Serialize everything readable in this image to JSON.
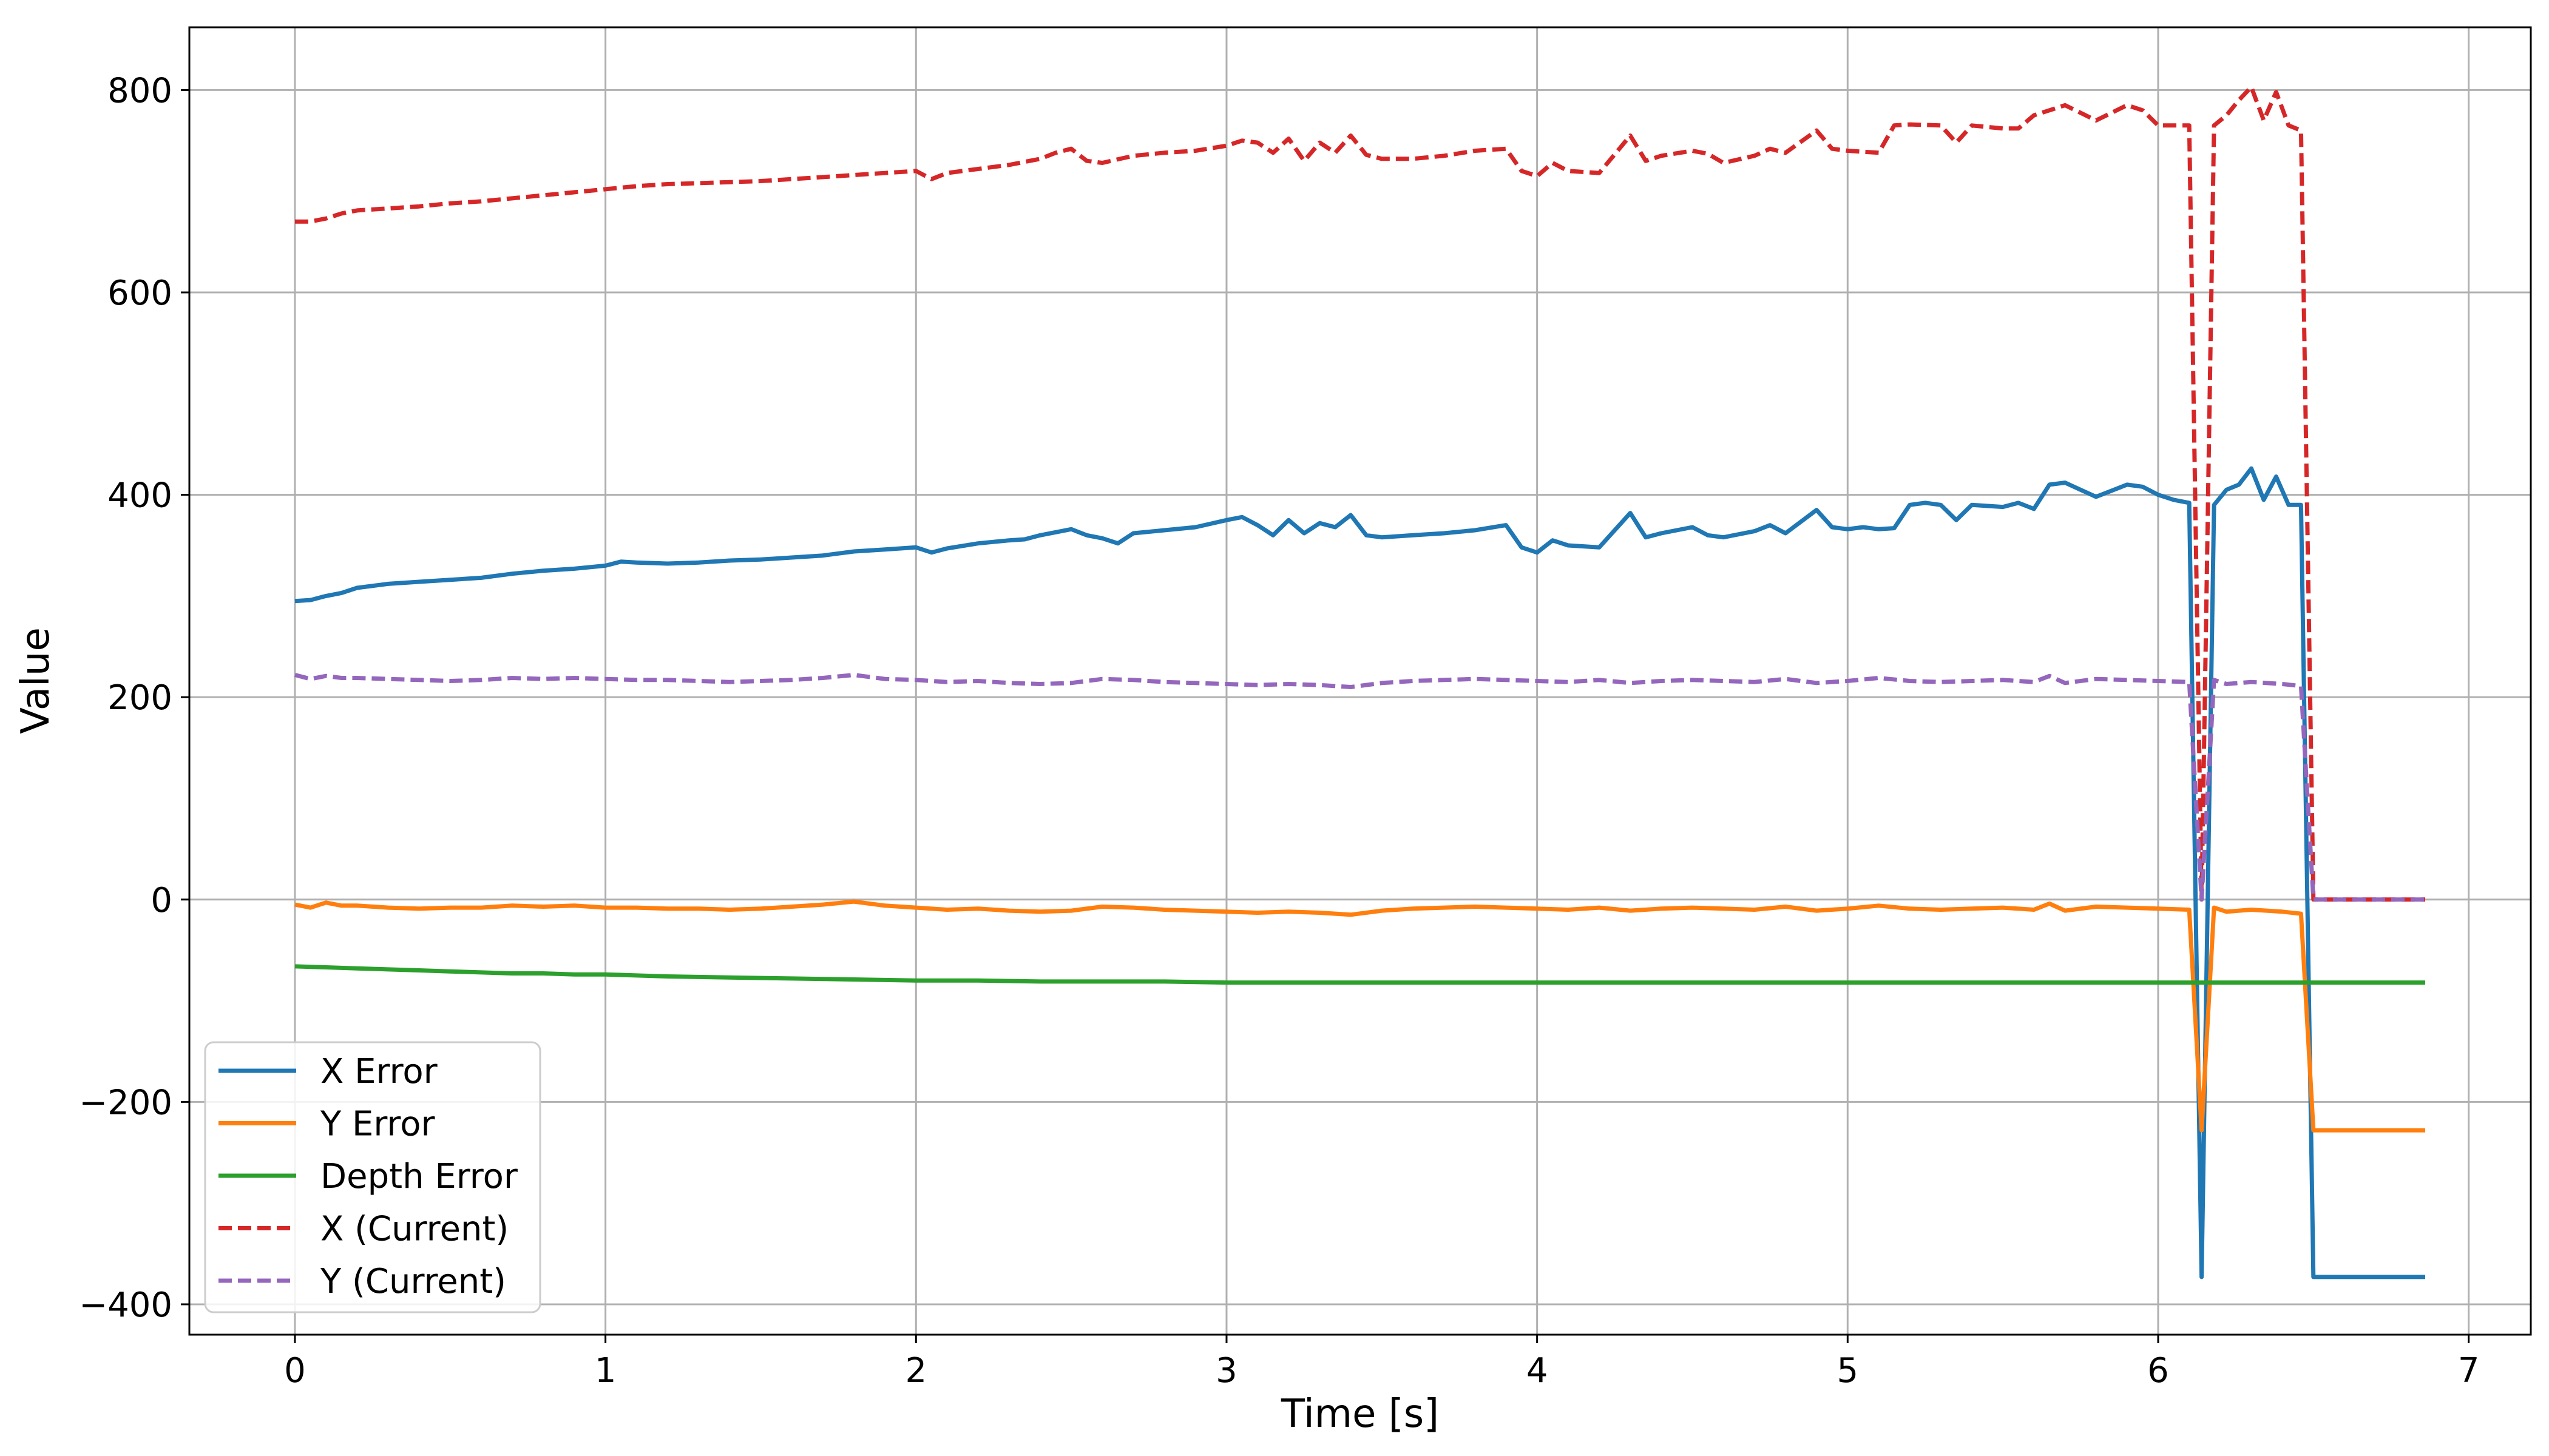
{
  "chart_data": {
    "type": "line",
    "title": "",
    "xlabel": "Time [s]",
    "ylabel": "Value",
    "xlim": [
      -0.34,
      7.2
    ],
    "ylim": [
      -430,
      862
    ],
    "xticks": [
      0,
      1,
      2,
      3,
      4,
      5,
      6,
      7
    ],
    "yticks": [
      -400,
      -200,
      0,
      200,
      400,
      600,
      800
    ],
    "xtick_labels": [
      "0",
      "1",
      "2",
      "3",
      "4",
      "5",
      "6",
      "7"
    ],
    "ytick_labels": [
      "−400",
      "−200",
      "0",
      "200",
      "400",
      "600",
      "800"
    ],
    "grid": true,
    "legend_position": "lower-left",
    "series": [
      {
        "name": "X Error",
        "color": "#1f77b4",
        "dash": "solid",
        "x": [
          0,
          0.05,
          0.1,
          0.15,
          0.2,
          0.3,
          0.4,
          0.5,
          0.6,
          0.7,
          0.8,
          0.9,
          1.0,
          1.05,
          1.1,
          1.2,
          1.3,
          1.4,
          1.5,
          1.6,
          1.7,
          1.75,
          1.8,
          1.9,
          2.0,
          2.05,
          2.1,
          2.2,
          2.3,
          2.35,
          2.4,
          2.45,
          2.5,
          2.55,
          2.6,
          2.65,
          2.7,
          2.8,
          2.9,
          3.0,
          3.05,
          3.1,
          3.15,
          3.2,
          3.25,
          3.3,
          3.35,
          3.4,
          3.45,
          3.5,
          3.6,
          3.7,
          3.8,
          3.9,
          3.95,
          4.0,
          4.05,
          4.1,
          4.2,
          4.3,
          4.35,
          4.4,
          4.5,
          4.55,
          4.6,
          4.7,
          4.75,
          4.8,
          4.9,
          4.95,
          5.0,
          5.05,
          5.1,
          5.15,
          5.2,
          5.25,
          5.3,
          5.35,
          5.4,
          5.5,
          5.55,
          5.6,
          5.65,
          5.7,
          5.75,
          5.8,
          5.9,
          5.95,
          6.0,
          6.05,
          6.1,
          6.14,
          6.18,
          6.22,
          6.26,
          6.3,
          6.34,
          6.38,
          6.42,
          6.46,
          6.5,
          6.6,
          6.7,
          6.86
        ],
        "values": [
          295,
          296,
          300,
          303,
          308,
          312,
          314,
          316,
          318,
          322,
          325,
          327,
          330,
          334,
          333,
          332,
          333,
          335,
          336,
          338,
          340,
          342,
          344,
          346,
          348,
          343,
          347,
          352,
          355,
          356,
          360,
          363,
          366,
          360,
          357,
          352,
          362,
          365,
          368,
          375,
          378,
          370,
          360,
          375,
          362,
          372,
          368,
          380,
          360,
          358,
          360,
          362,
          365,
          370,
          348,
          343,
          355,
          350,
          348,
          382,
          358,
          362,
          368,
          360,
          358,
          364,
          370,
          362,
          385,
          368,
          366,
          368,
          366,
          367,
          390,
          392,
          390,
          375,
          390,
          388,
          392,
          386,
          410,
          412,
          405,
          398,
          410,
          408,
          400,
          395,
          392,
          -373,
          390,
          405,
          410,
          426,
          395,
          418,
          390,
          390,
          -373,
          -373,
          -373,
          -373
        ]
      },
      {
        "name": "Y Error",
        "color": "#ff7f0e",
        "dash": "solid",
        "x": [
          0,
          0.05,
          0.1,
          0.15,
          0.2,
          0.3,
          0.4,
          0.5,
          0.6,
          0.7,
          0.8,
          0.9,
          1.0,
          1.1,
          1.2,
          1.3,
          1.4,
          1.5,
          1.6,
          1.7,
          1.8,
          1.9,
          2.0,
          2.1,
          2.2,
          2.3,
          2.4,
          2.5,
          2.6,
          2.7,
          2.8,
          2.9,
          3.0,
          3.1,
          3.2,
          3.3,
          3.4,
          3.5,
          3.6,
          3.7,
          3.8,
          3.9,
          4.0,
          4.1,
          4.2,
          4.3,
          4.4,
          4.5,
          4.6,
          4.7,
          4.8,
          4.9,
          5.0,
          5.1,
          5.2,
          5.3,
          5.4,
          5.5,
          5.6,
          5.65,
          5.7,
          5.8,
          5.9,
          6.0,
          6.1,
          6.14,
          6.18,
          6.22,
          6.3,
          6.4,
          6.46,
          6.5,
          6.6,
          6.7,
          6.86
        ],
        "values": [
          -5,
          -8,
          -3,
          -6,
          -6,
          -8,
          -9,
          -8,
          -8,
          -6,
          -7,
          -6,
          -8,
          -8,
          -9,
          -9,
          -10,
          -9,
          -7,
          -5,
          -2,
          -6,
          -8,
          -10,
          -9,
          -11,
          -12,
          -11,
          -7,
          -8,
          -10,
          -11,
          -12,
          -13,
          -12,
          -13,
          -15,
          -11,
          -9,
          -8,
          -7,
          -8,
          -9,
          -10,
          -8,
          -11,
          -9,
          -8,
          -9,
          -10,
          -7,
          -11,
          -9,
          -6,
          -9,
          -10,
          -9,
          -8,
          -10,
          -4,
          -11,
          -7,
          -8,
          -9,
          -10,
          -228,
          -8,
          -12,
          -10,
          -12,
          -14,
          -228,
          -228,
          -228,
          -228
        ]
      },
      {
        "name": "Depth Error",
        "color": "#2ca02c",
        "dash": "solid",
        "x": [
          0,
          0.1,
          0.2,
          0.3,
          0.4,
          0.5,
          0.6,
          0.7,
          0.8,
          0.9,
          1.0,
          1.1,
          1.2,
          1.4,
          1.6,
          1.8,
          2.0,
          2.2,
          2.4,
          2.6,
          2.8,
          3.0,
          3.2,
          3.4,
          4.0,
          5.0,
          6.0,
          6.86
        ],
        "values": [
          -66,
          -67,
          -68,
          -69,
          -70,
          -71,
          -72,
          -73,
          -73,
          -74,
          -74,
          -75,
          -76,
          -77,
          -78,
          -79,
          -80,
          -80,
          -81,
          -81,
          -81,
          -82,
          -82,
          -82,
          -82,
          -82,
          -82,
          -82
        ]
      },
      {
        "name": "X (Current)",
        "color": "#d62728",
        "dash": "dashed",
        "x": [
          0,
          0.05,
          0.1,
          0.15,
          0.2,
          0.3,
          0.4,
          0.5,
          0.6,
          0.7,
          0.8,
          0.9,
          1.0,
          1.1,
          1.2,
          1.3,
          1.4,
          1.5,
          1.6,
          1.7,
          1.8,
          1.9,
          2.0,
          2.05,
          2.1,
          2.2,
          2.3,
          2.35,
          2.4,
          2.45,
          2.5,
          2.55,
          2.6,
          2.7,
          2.8,
          2.9,
          3.0,
          3.05,
          3.1,
          3.15,
          3.2,
          3.25,
          3.3,
          3.35,
          3.4,
          3.45,
          3.5,
          3.6,
          3.7,
          3.8,
          3.9,
          3.95,
          4.0,
          4.05,
          4.1,
          4.2,
          4.3,
          4.35,
          4.4,
          4.5,
          4.55,
          4.6,
          4.7,
          4.75,
          4.8,
          4.9,
          4.95,
          5.0,
          5.1,
          5.15,
          5.2,
          5.3,
          5.35,
          5.4,
          5.5,
          5.55,
          5.6,
          5.65,
          5.7,
          5.8,
          5.9,
          5.95,
          6.0,
          6.05,
          6.1,
          6.14,
          6.18,
          6.22,
          6.26,
          6.3,
          6.34,
          6.38,
          6.42,
          6.46,
          6.5,
          6.6,
          6.7,
          6.86
        ],
        "values": [
          670,
          670,
          673,
          678,
          681,
          683,
          685,
          688,
          690,
          693,
          696,
          699,
          702,
          705,
          707,
          708,
          709,
          710,
          712,
          714,
          716,
          718,
          720,
          712,
          718,
          722,
          726,
          729,
          732,
          738,
          742,
          730,
          728,
          735,
          738,
          740,
          745,
          750,
          748,
          738,
          752,
          730,
          748,
          738,
          755,
          736,
          732,
          732,
          735,
          740,
          742,
          720,
          715,
          728,
          720,
          718,
          755,
          730,
          735,
          740,
          737,
          728,
          735,
          742,
          738,
          760,
          742,
          740,
          738,
          765,
          766,
          765,
          748,
          765,
          762,
          762,
          775,
          780,
          785,
          770,
          785,
          780,
          765,
          765,
          765,
          0,
          765,
          775,
          790,
          803,
          770,
          798,
          765,
          760,
          0,
          0,
          0,
          0
        ]
      },
      {
        "name": "Y (Current)",
        "color": "#9467bd",
        "dash": "dashed",
        "x": [
          0,
          0.05,
          0.1,
          0.15,
          0.2,
          0.3,
          0.4,
          0.5,
          0.6,
          0.7,
          0.8,
          0.9,
          1.0,
          1.1,
          1.2,
          1.3,
          1.4,
          1.5,
          1.6,
          1.7,
          1.8,
          1.9,
          2.0,
          2.1,
          2.2,
          2.3,
          2.4,
          2.5,
          2.6,
          2.7,
          2.8,
          2.9,
          3.0,
          3.1,
          3.2,
          3.3,
          3.4,
          3.5,
          3.6,
          3.7,
          3.8,
          3.9,
          4.0,
          4.1,
          4.2,
          4.3,
          4.4,
          4.5,
          4.6,
          4.7,
          4.8,
          4.9,
          5.0,
          5.1,
          5.2,
          5.3,
          5.4,
          5.5,
          5.6,
          5.65,
          5.7,
          5.8,
          5.9,
          6.0,
          6.1,
          6.14,
          6.18,
          6.22,
          6.3,
          6.4,
          6.46,
          6.5,
          6.6,
          6.7,
          6.86
        ],
        "values": [
          222,
          218,
          221,
          219,
          219,
          218,
          217,
          216,
          217,
          219,
          218,
          219,
          218,
          217,
          217,
          216,
          215,
          216,
          217,
          219,
          222,
          218,
          217,
          215,
          216,
          214,
          213,
          214,
          218,
          217,
          215,
          214,
          213,
          212,
          213,
          212,
          210,
          214,
          216,
          217,
          218,
          217,
          216,
          215,
          217,
          214,
          216,
          217,
          216,
          215,
          218,
          214,
          216,
          219,
          216,
          215,
          216,
          217,
          215,
          221,
          214,
          218,
          217,
          216,
          215,
          0,
          217,
          213,
          215,
          213,
          211,
          0,
          0,
          0,
          0
        ]
      }
    ]
  }
}
